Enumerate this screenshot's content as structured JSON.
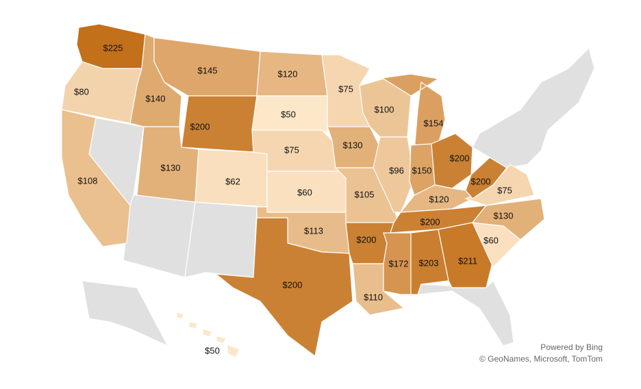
{
  "chart_data": {
    "type": "choropleth",
    "values": [
      225,
      80,
      108,
      140,
      145,
      200,
      130,
      62,
      120,
      50,
      75,
      60,
      113,
      200,
      75,
      130,
      105,
      200,
      110,
      100,
      96,
      154,
      150,
      200,
      120,
      200,
      172,
      203,
      211,
      60,
      130,
      75,
      200,
      50
    ],
    "value_labels": [
      "$225",
      "$80",
      "$108",
      "$140",
      "$145",
      "$200",
      "$130",
      "$62",
      "$120",
      "$50",
      "$75",
      "$60",
      "$113",
      "$200",
      "$75",
      "$130",
      "$105",
      "$200",
      "$110",
      "$100",
      "$96",
      "$154",
      "$150",
      "$200",
      "$120",
      "$200",
      "$172",
      "$203",
      "$211",
      "$60",
      "$130",
      "$75",
      "$200",
      "$50"
    ],
    "color_range": [
      "#fde7c9",
      "#c3701a"
    ],
    "no_data_color": "#e0e0e0",
    "attribution": [
      "Powered by Bing",
      "© GeoNames, Microsoft, TomTom"
    ]
  }
}
